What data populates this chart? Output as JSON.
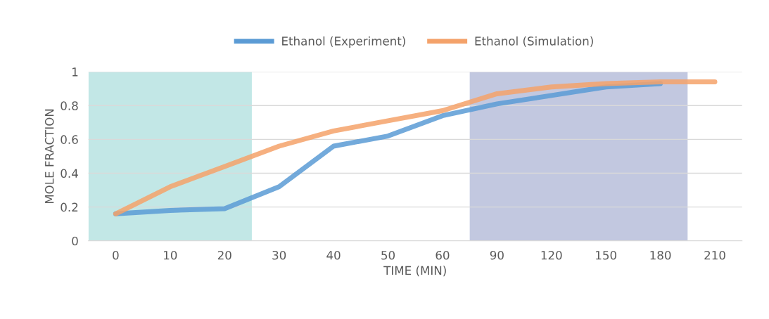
{
  "chart_data": {
    "type": "line",
    "xlabel": "TIME (MIN)",
    "ylabel": "MOLE FRACTION",
    "categories": [
      "0",
      "10",
      "20",
      "30",
      "40",
      "50",
      "60",
      "90",
      "120",
      "150",
      "180",
      "210"
    ],
    "series": [
      {
        "name": "Ethanol (Experiment)",
        "color": "#5b9bd5",
        "values": [
          0.16,
          0.18,
          0.19,
          0.32,
          0.56,
          0.62,
          0.74,
          0.81,
          0.86,
          0.91,
          0.93,
          null
        ]
      },
      {
        "name": "Ethanol (Simulation)",
        "color": "#f4a26a",
        "values": [
          0.16,
          0.32,
          0.44,
          0.56,
          0.65,
          0.71,
          0.77,
          0.87,
          0.91,
          0.93,
          0.94,
          0.94
        ]
      }
    ],
    "ylim": [
      0,
      1
    ],
    "yticks": [
      0,
      0.2,
      0.4,
      0.6,
      0.8,
      1
    ],
    "bands": [
      {
        "axis": "x",
        "from": "0",
        "to": "20",
        "color": "#8fd3d1"
      },
      {
        "axis": "x",
        "from": "90",
        "to": "180",
        "color": "#8f9ac6"
      }
    ],
    "grid": "y",
    "legend": "top",
    "marker": "none",
    "line_style": "solid"
  }
}
